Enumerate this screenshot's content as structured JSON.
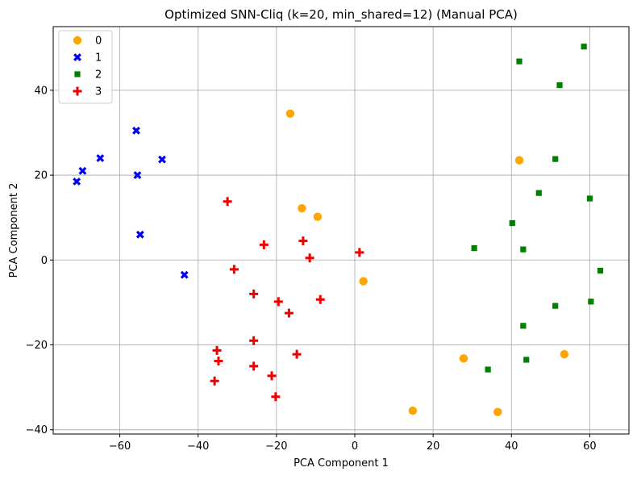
{
  "chart_data": {
    "type": "scatter",
    "title": "Optimized SNN-Cliq (k=20, min_shared=12) (Manual PCA)",
    "xlabel": "PCA Component 1",
    "ylabel": "PCA Component 2",
    "xlim": [
      -77,
      70
    ],
    "ylim": [
      -41,
      55
    ],
    "xticks": [
      -60,
      -40,
      -20,
      0,
      20,
      40,
      60
    ],
    "yticks": [
      -40,
      -20,
      0,
      20,
      40
    ],
    "xtick_labels": [
      "−60",
      "−40",
      "−20",
      "0",
      "20",
      "40",
      "60"
    ],
    "ytick_labels": [
      "−40",
      "−20",
      "0",
      "20",
      "40"
    ],
    "grid": true,
    "legend_position": "top-left",
    "series": [
      {
        "name": "0",
        "marker": "circle",
        "color": "#ffa500",
        "points": [
          [
            -16.5,
            34.5
          ],
          [
            -13.5,
            12.2
          ],
          [
            -9.5,
            10.2
          ],
          [
            2.2,
            -5.0
          ],
          [
            14.8,
            -35.5
          ],
          [
            27.8,
            -23.2
          ],
          [
            36.5,
            -35.8
          ],
          [
            42.0,
            23.5
          ],
          [
            53.5,
            -22.2
          ]
        ]
      },
      {
        "name": "1",
        "marker": "x",
        "color": "#0000ee",
        "points": [
          [
            -71.0,
            18.5
          ],
          [
            -69.5,
            21.0
          ],
          [
            -65.0,
            24.0
          ],
          [
            -55.8,
            30.5
          ],
          [
            -55.5,
            20.0
          ],
          [
            -54.8,
            6.0
          ],
          [
            -49.2,
            23.7
          ],
          [
            -43.5,
            -3.5
          ]
        ]
      },
      {
        "name": "2",
        "marker": "square",
        "color": "#008000",
        "points": [
          [
            58.5,
            50.3
          ],
          [
            42.0,
            46.8
          ],
          [
            52.3,
            41.2
          ],
          [
            51.2,
            23.8
          ],
          [
            47.0,
            15.8
          ],
          [
            60.0,
            14.5
          ],
          [
            40.2,
            8.7
          ],
          [
            30.5,
            2.8
          ],
          [
            43.0,
            2.5
          ],
          [
            62.7,
            -2.5
          ],
          [
            51.2,
            -10.8
          ],
          [
            60.3,
            -9.8
          ],
          [
            43.0,
            -15.5
          ],
          [
            34.0,
            -25.8
          ],
          [
            43.8,
            -23.5
          ]
        ]
      },
      {
        "name": "3",
        "marker": "plus",
        "color": "#ee0000",
        "points": [
          [
            -32.5,
            13.8
          ],
          [
            -23.2,
            3.6
          ],
          [
            -13.2,
            4.5
          ],
          [
            -11.5,
            0.5
          ],
          [
            1.2,
            1.8
          ],
          [
            -30.8,
            -2.2
          ],
          [
            -25.8,
            -8.0
          ],
          [
            -19.5,
            -9.8
          ],
          [
            -8.8,
            -9.3
          ],
          [
            -16.8,
            -12.5
          ],
          [
            -25.8,
            -19.0
          ],
          [
            -35.2,
            -21.3
          ],
          [
            -34.8,
            -23.8
          ],
          [
            -25.8,
            -25.0
          ],
          [
            -14.8,
            -22.2
          ],
          [
            -21.2,
            -27.3
          ],
          [
            -35.8,
            -28.5
          ],
          [
            -20.2,
            -32.2
          ]
        ]
      }
    ]
  }
}
